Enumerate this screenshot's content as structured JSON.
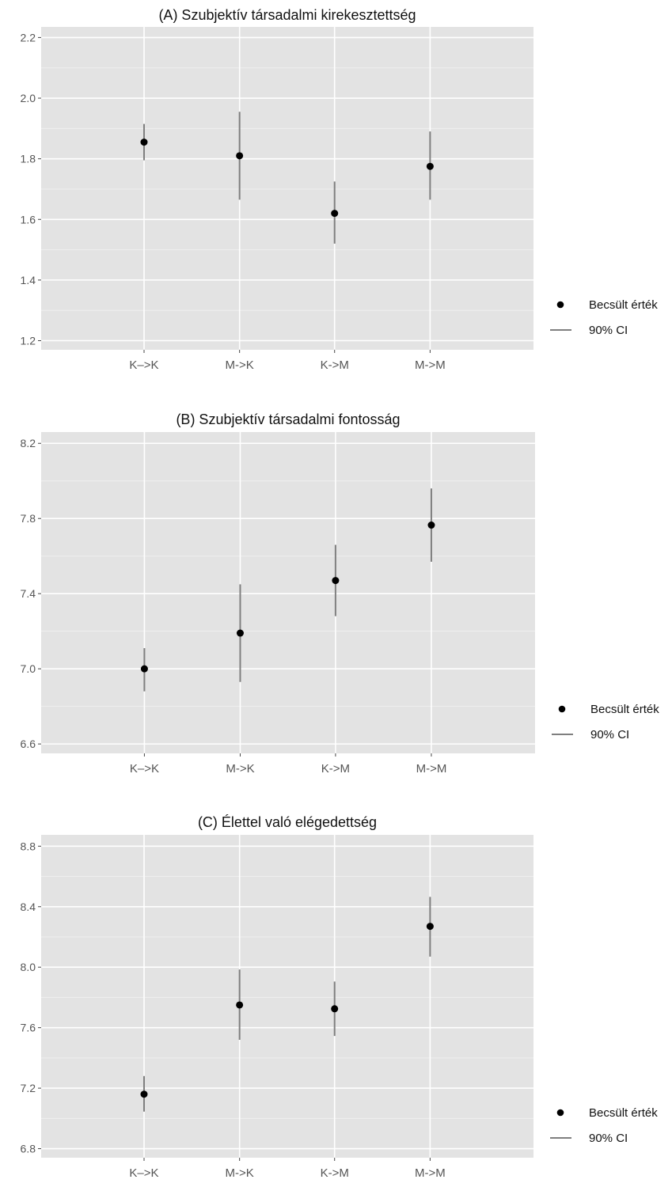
{
  "chart_data": [
    {
      "type": "scatter",
      "title": "(A) Szubjektív társadalmi kirekesztettség",
      "categories": [
        "K–>K",
        "M->K",
        "K->M",
        "M->M"
      ],
      "values": [
        1.855,
        1.81,
        1.62,
        1.775
      ],
      "ci_low": [
        1.795,
        1.665,
        1.52,
        1.665
      ],
      "ci_high": [
        1.915,
        1.955,
        1.725,
        1.89
      ],
      "yticks": [
        "1.2",
        "1.4",
        "1.6",
        "1.8",
        "2.0",
        "2.2"
      ],
      "ylim": [
        1.17,
        2.235
      ],
      "grid": true,
      "legend": {
        "position": "right",
        "point_label": "Becsült érték",
        "line_label": "90% CI"
      }
    },
    {
      "type": "scatter",
      "title": "(B) Szubjektív társadalmi fontosság",
      "categories": [
        "K–>K",
        "M->K",
        "K->M",
        "M->M"
      ],
      "values": [
        7.0,
        7.19,
        7.47,
        7.765
      ],
      "ci_low": [
        6.88,
        6.93,
        7.28,
        7.57
      ],
      "ci_high": [
        7.11,
        7.45,
        7.66,
        7.96
      ],
      "yticks": [
        "6.6",
        "7.0",
        "7.4",
        "7.8",
        "8.2"
      ],
      "ylim": [
        6.55,
        8.26
      ],
      "grid": true,
      "legend": {
        "position": "right",
        "point_label": "Becsült érték",
        "line_label": "90% CI"
      }
    },
    {
      "type": "scatter",
      "title": "(C) Élettel való elégedettség",
      "categories": [
        "K–>K",
        "M->K",
        "K->M",
        "M->M"
      ],
      "values": [
        7.16,
        7.75,
        7.725,
        8.27
      ],
      "ci_low": [
        7.045,
        7.52,
        7.545,
        8.07
      ],
      "ci_high": [
        7.28,
        7.985,
        7.905,
        8.465
      ],
      "yticks": [
        "6.8",
        "7.2",
        "7.6",
        "8.0",
        "8.4",
        "8.8"
      ],
      "ylim": [
        6.74,
        8.875
      ],
      "grid": true,
      "legend": {
        "position": "right",
        "point_label": "Becsült érték",
        "line_label": "90% CI"
      }
    }
  ],
  "colors": {
    "panel_background": "#e3e3e3",
    "grid_major": "#ffffff",
    "grid_minor": "#efefef",
    "point": "#000000",
    "ci_line": "#7f7f7f",
    "axis_text": "#555555",
    "title_text": "#111111"
  }
}
